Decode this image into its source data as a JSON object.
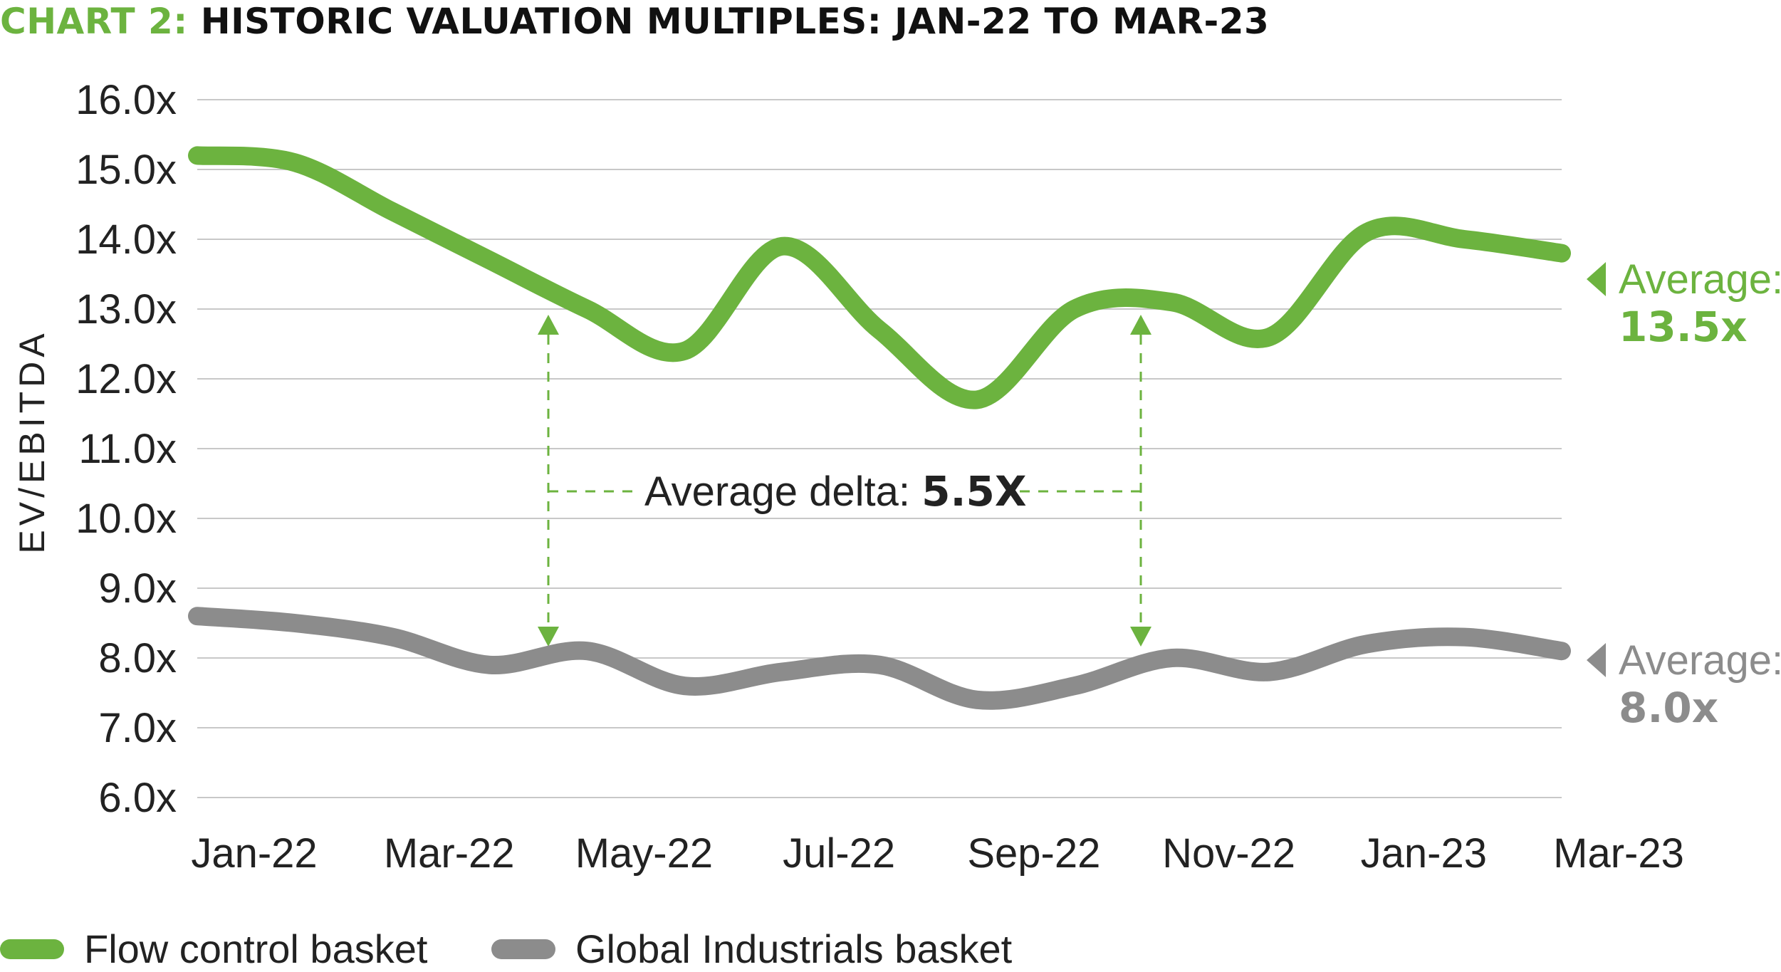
{
  "title": {
    "prefix": "CHART 2:",
    "main": "HISTORIC VALUATION MULTIPLES: JAN-22 TO MAR-23"
  },
  "colors": {
    "flow": "#6cb33f",
    "global": "#8c8c8c",
    "grid": "#c8c8c8",
    "text": "#222222"
  },
  "chart_data": {
    "type": "line",
    "ylabel": "EV/EBITDA",
    "ylim": [
      6,
      16
    ],
    "yticks": [
      "16.0x",
      "15.0x",
      "14.0x",
      "13.0x",
      "12.0x",
      "11.0x",
      "10.0x",
      "9.0x",
      "8.0x",
      "7.0x",
      "6.0x"
    ],
    "xtick_labels": [
      "Jan-22",
      "Mar-22",
      "May-22",
      "Jul-22",
      "Sep-22",
      "Nov-22",
      "Jan-23",
      "Mar-23"
    ],
    "x": [
      "Jan-22",
      "Feb-22",
      "Mar-22",
      "Apr-22",
      "May-22",
      "Jun-22",
      "Jul-22",
      "Aug-22",
      "Sep-22",
      "Oct-22",
      "Nov-22",
      "Dec-22",
      "Jan-23",
      "Feb-23",
      "Mar-23"
    ],
    "grid": true,
    "series": [
      {
        "name": "Flow control basket",
        "values": [
          15.2,
          15.1,
          14.4,
          13.7,
          13.0,
          12.4,
          13.9,
          12.7,
          11.7,
          13.0,
          13.1,
          12.6,
          14.1,
          14.0,
          13.8
        ],
        "average_label": "Average:",
        "average_value": "13.5x"
      },
      {
        "name": "Global Industrials basket",
        "values": [
          8.6,
          8.5,
          8.3,
          7.9,
          8.1,
          7.6,
          7.8,
          7.9,
          7.4,
          7.6,
          8.0,
          7.8,
          8.2,
          8.3,
          8.1
        ],
        "average_label": "Average:",
        "average_value": "8.0x"
      }
    ],
    "annotation": {
      "label": "Average delta: ",
      "value": "5.5X"
    }
  }
}
